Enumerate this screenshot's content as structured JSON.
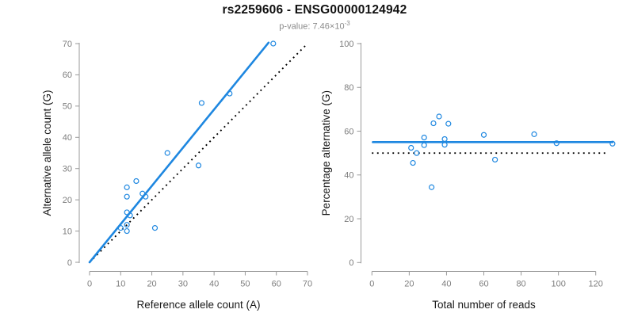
{
  "title": "rs2259606 - ENSG00000124942",
  "subtitle": {
    "prefix": "p-value: 7.46×10",
    "exponent": "-3"
  },
  "colors": {
    "accent_blue": "#1E87E0",
    "reference_black": "#000000",
    "axis_line_gray": "#9a9a9a",
    "tick_label_gray": "#7d7d7d",
    "axis_title_color": "#1a1a1a",
    "subtitle_gray": "#8a8a8a",
    "background": "#ffffff"
  },
  "chart_data": [
    {
      "type": "scatter",
      "panel": "left",
      "xlabel": "Reference allele count (A)",
      "ylabel": "Alternative allele count (G)",
      "xlim": [
        0,
        70
      ],
      "ylim": [
        0,
        70
      ],
      "xticks": [
        0,
        10,
        20,
        30,
        40,
        50,
        60,
        70
      ],
      "yticks": [
        0,
        10,
        20,
        30,
        40,
        50,
        60,
        70
      ],
      "grid": false,
      "points": [
        [
          10,
          11
        ],
        [
          12,
          10
        ],
        [
          12,
          12
        ],
        [
          12,
          16
        ],
        [
          13,
          15
        ],
        [
          12,
          21
        ],
        [
          12,
          24
        ],
        [
          15,
          26
        ],
        [
          17,
          22
        ],
        [
          18,
          21
        ],
        [
          21,
          11
        ],
        [
          25,
          35
        ],
        [
          35,
          31
        ],
        [
          36,
          51
        ],
        [
          45,
          54
        ],
        [
          59,
          70
        ]
      ],
      "fit_line": {
        "style": "solid",
        "from": [
          0,
          0
        ],
        "to": [
          57.5,
          70.3
        ],
        "meaning": "fitted allelic ratio ~1.22"
      },
      "reference_line": {
        "style": "dotted",
        "from": [
          0,
          0
        ],
        "to": [
          69.5,
          69.5
        ],
        "meaning": "identity line y=x"
      }
    },
    {
      "type": "scatter",
      "panel": "right",
      "xlabel": "Total number of reads",
      "ylabel": "Percentage alternative (G)",
      "xlim": [
        0,
        130
      ],
      "ylim": [
        0,
        100
      ],
      "xticks": [
        0,
        20,
        40,
        60,
        80,
        100,
        120
      ],
      "yticks": [
        0,
        20,
        40,
        60,
        80,
        100
      ],
      "grid": false,
      "points": [
        [
          21,
          52.4
        ],
        [
          22,
          45.5
        ],
        [
          24,
          50
        ],
        [
          28,
          57.1
        ],
        [
          28,
          53.6
        ],
        [
          32,
          34.4
        ],
        [
          33,
          63.6
        ],
        [
          36,
          66.7
        ],
        [
          39,
          56.4
        ],
        [
          39,
          53.8
        ],
        [
          41,
          63.4
        ],
        [
          60,
          58.3
        ],
        [
          66,
          47
        ],
        [
          87,
          58.6
        ],
        [
          99,
          54.5
        ],
        [
          129,
          54.3
        ]
      ],
      "fit_line": {
        "style": "solid",
        "from": [
          0.5,
          55
        ],
        "to": [
          129,
          55
        ],
        "meaning": "mean alternative percentage ~55%"
      },
      "reference_line": {
        "style": "dotted",
        "from": [
          0,
          50
        ],
        "to": [
          126,
          50
        ],
        "meaning": "50% expectation"
      }
    }
  ]
}
